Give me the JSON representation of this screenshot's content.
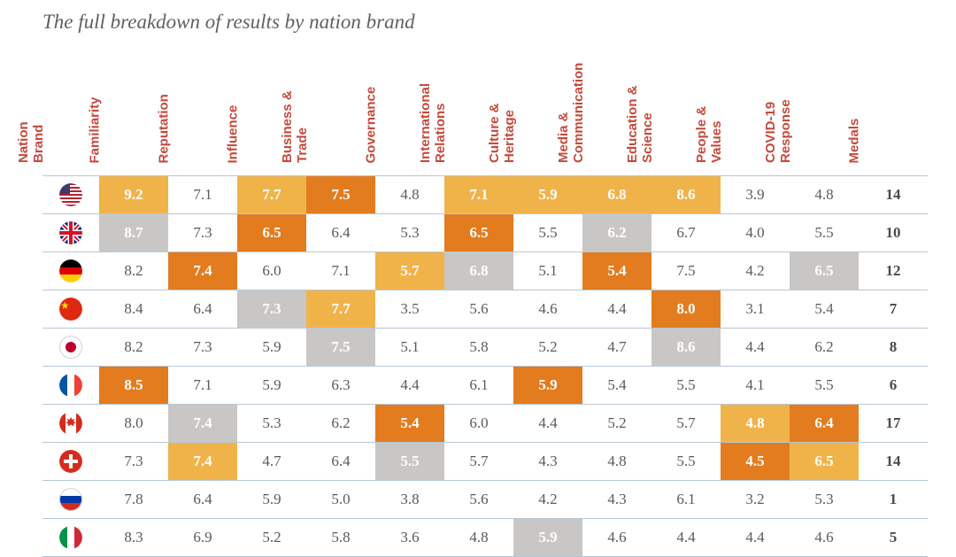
{
  "title": "The full breakdown of results by nation brand",
  "table": {
    "columns": [
      "Nation Brand",
      "Familiarity",
      "Reputation",
      "Influence",
      "Business & Trade",
      "Governance",
      "International Relations",
      "Culture & Heritage",
      "Media & Communication",
      "Education & Science",
      "People & Values",
      "COVID-19 Response",
      "Medals"
    ],
    "highlight_colors": {
      "gold": "#f0b34a",
      "orange": "#e27c1f",
      "silver": "#c9c7c6",
      "border": "#b7c7d6",
      "header_text": "#c5493c",
      "body_text": "#5a5a5a",
      "hl_text": "#ffffff"
    },
    "fontsize_body": 17,
    "fontsize_header": 15,
    "rows": [
      {
        "country": "United States",
        "flag": "us",
        "cells": [
          {
            "v": "9.2",
            "hl": "gold"
          },
          {
            "v": "7.1"
          },
          {
            "v": "7.7",
            "hl": "gold"
          },
          {
            "v": "7.5",
            "hl": "orange"
          },
          {
            "v": "4.8"
          },
          {
            "v": "7.1",
            "hl": "gold"
          },
          {
            "v": "5.9",
            "hl": "gold"
          },
          {
            "v": "6.8",
            "hl": "gold"
          },
          {
            "v": "8.6",
            "hl": "gold"
          },
          {
            "v": "3.9"
          },
          {
            "v": "4.8"
          }
        ],
        "medals": "14"
      },
      {
        "country": "United Kingdom",
        "flag": "uk",
        "cells": [
          {
            "v": "8.7",
            "hl": "silver"
          },
          {
            "v": "7.3"
          },
          {
            "v": "6.5",
            "hl": "orange"
          },
          {
            "v": "6.4"
          },
          {
            "v": "5.3"
          },
          {
            "v": "6.5",
            "hl": "orange"
          },
          {
            "v": "5.5"
          },
          {
            "v": "6.2",
            "hl": "silver"
          },
          {
            "v": "6.7"
          },
          {
            "v": "4.0"
          },
          {
            "v": "5.5"
          }
        ],
        "medals": "10"
      },
      {
        "country": "Germany",
        "flag": "de",
        "cells": [
          {
            "v": "8.2"
          },
          {
            "v": "7.4",
            "hl": "orange"
          },
          {
            "v": "6.0"
          },
          {
            "v": "7.1"
          },
          {
            "v": "5.7",
            "hl": "gold"
          },
          {
            "v": "6.8",
            "hl": "silver"
          },
          {
            "v": "5.1"
          },
          {
            "v": "5.4",
            "hl": "orange"
          },
          {
            "v": "7.5"
          },
          {
            "v": "4.2"
          },
          {
            "v": "6.5",
            "hl": "silver"
          }
        ],
        "medals": "12"
      },
      {
        "country": "China",
        "flag": "cn",
        "cells": [
          {
            "v": "8.4"
          },
          {
            "v": "6.4"
          },
          {
            "v": "7.3",
            "hl": "silver"
          },
          {
            "v": "7.7",
            "hl": "gold"
          },
          {
            "v": "3.5"
          },
          {
            "v": "5.6"
          },
          {
            "v": "4.6"
          },
          {
            "v": "4.4"
          },
          {
            "v": "8.0",
            "hl": "orange"
          },
          {
            "v": "3.1"
          },
          {
            "v": "5.4"
          }
        ],
        "medals": "7"
      },
      {
        "country": "Japan",
        "flag": "jp",
        "cells": [
          {
            "v": "8.2"
          },
          {
            "v": "7.3"
          },
          {
            "v": "5.9"
          },
          {
            "v": "7.5",
            "hl": "silver"
          },
          {
            "v": "5.1"
          },
          {
            "v": "5.8"
          },
          {
            "v": "5.2"
          },
          {
            "v": "4.7"
          },
          {
            "v": "8.6",
            "hl": "silver"
          },
          {
            "v": "4.4"
          },
          {
            "v": "6.2"
          }
        ],
        "medals": "8"
      },
      {
        "country": "France",
        "flag": "fr",
        "cells": [
          {
            "v": "8.5",
            "hl": "orange"
          },
          {
            "v": "7.1"
          },
          {
            "v": "5.9"
          },
          {
            "v": "6.3"
          },
          {
            "v": "4.4"
          },
          {
            "v": "6.1"
          },
          {
            "v": "5.9",
            "hl": "orange"
          },
          {
            "v": "5.4"
          },
          {
            "v": "5.5"
          },
          {
            "v": "4.1"
          },
          {
            "v": "5.5"
          }
        ],
        "medals": "6"
      },
      {
        "country": "Canada",
        "flag": "ca",
        "cells": [
          {
            "v": "8.0"
          },
          {
            "v": "7.4",
            "hl": "silver"
          },
          {
            "v": "5.3"
          },
          {
            "v": "6.2"
          },
          {
            "v": "5.4",
            "hl": "orange"
          },
          {
            "v": "6.0"
          },
          {
            "v": "4.4"
          },
          {
            "v": "5.2"
          },
          {
            "v": "5.7"
          },
          {
            "v": "4.8",
            "hl": "gold"
          },
          {
            "v": "6.4",
            "hl": "orange"
          }
        ],
        "medals": "17"
      },
      {
        "country": "Switzerland",
        "flag": "ch",
        "cells": [
          {
            "v": "7.3"
          },
          {
            "v": "7.4",
            "hl": "gold"
          },
          {
            "v": "4.7"
          },
          {
            "v": "6.4"
          },
          {
            "v": "5.5",
            "hl": "silver"
          },
          {
            "v": "5.7"
          },
          {
            "v": "4.3"
          },
          {
            "v": "4.8"
          },
          {
            "v": "5.5"
          },
          {
            "v": "4.5",
            "hl": "orange"
          },
          {
            "v": "6.5",
            "hl": "gold"
          }
        ],
        "medals": "14"
      },
      {
        "country": "Russia",
        "flag": "ru",
        "cells": [
          {
            "v": "7.8"
          },
          {
            "v": "6.4"
          },
          {
            "v": "5.9"
          },
          {
            "v": "5.0"
          },
          {
            "v": "3.8"
          },
          {
            "v": "5.6"
          },
          {
            "v": "4.2"
          },
          {
            "v": "4.3"
          },
          {
            "v": "6.1"
          },
          {
            "v": "3.2"
          },
          {
            "v": "5.3"
          }
        ],
        "medals": "1"
      },
      {
        "country": "Italy",
        "flag": "it",
        "cells": [
          {
            "v": "8.3"
          },
          {
            "v": "6.9"
          },
          {
            "v": "5.2"
          },
          {
            "v": "5.8"
          },
          {
            "v": "3.6"
          },
          {
            "v": "4.8"
          },
          {
            "v": "5.9",
            "hl": "silver"
          },
          {
            "v": "4.6"
          },
          {
            "v": "4.4"
          },
          {
            "v": "4.4"
          },
          {
            "v": "4.6"
          }
        ],
        "medals": "5"
      }
    ]
  }
}
